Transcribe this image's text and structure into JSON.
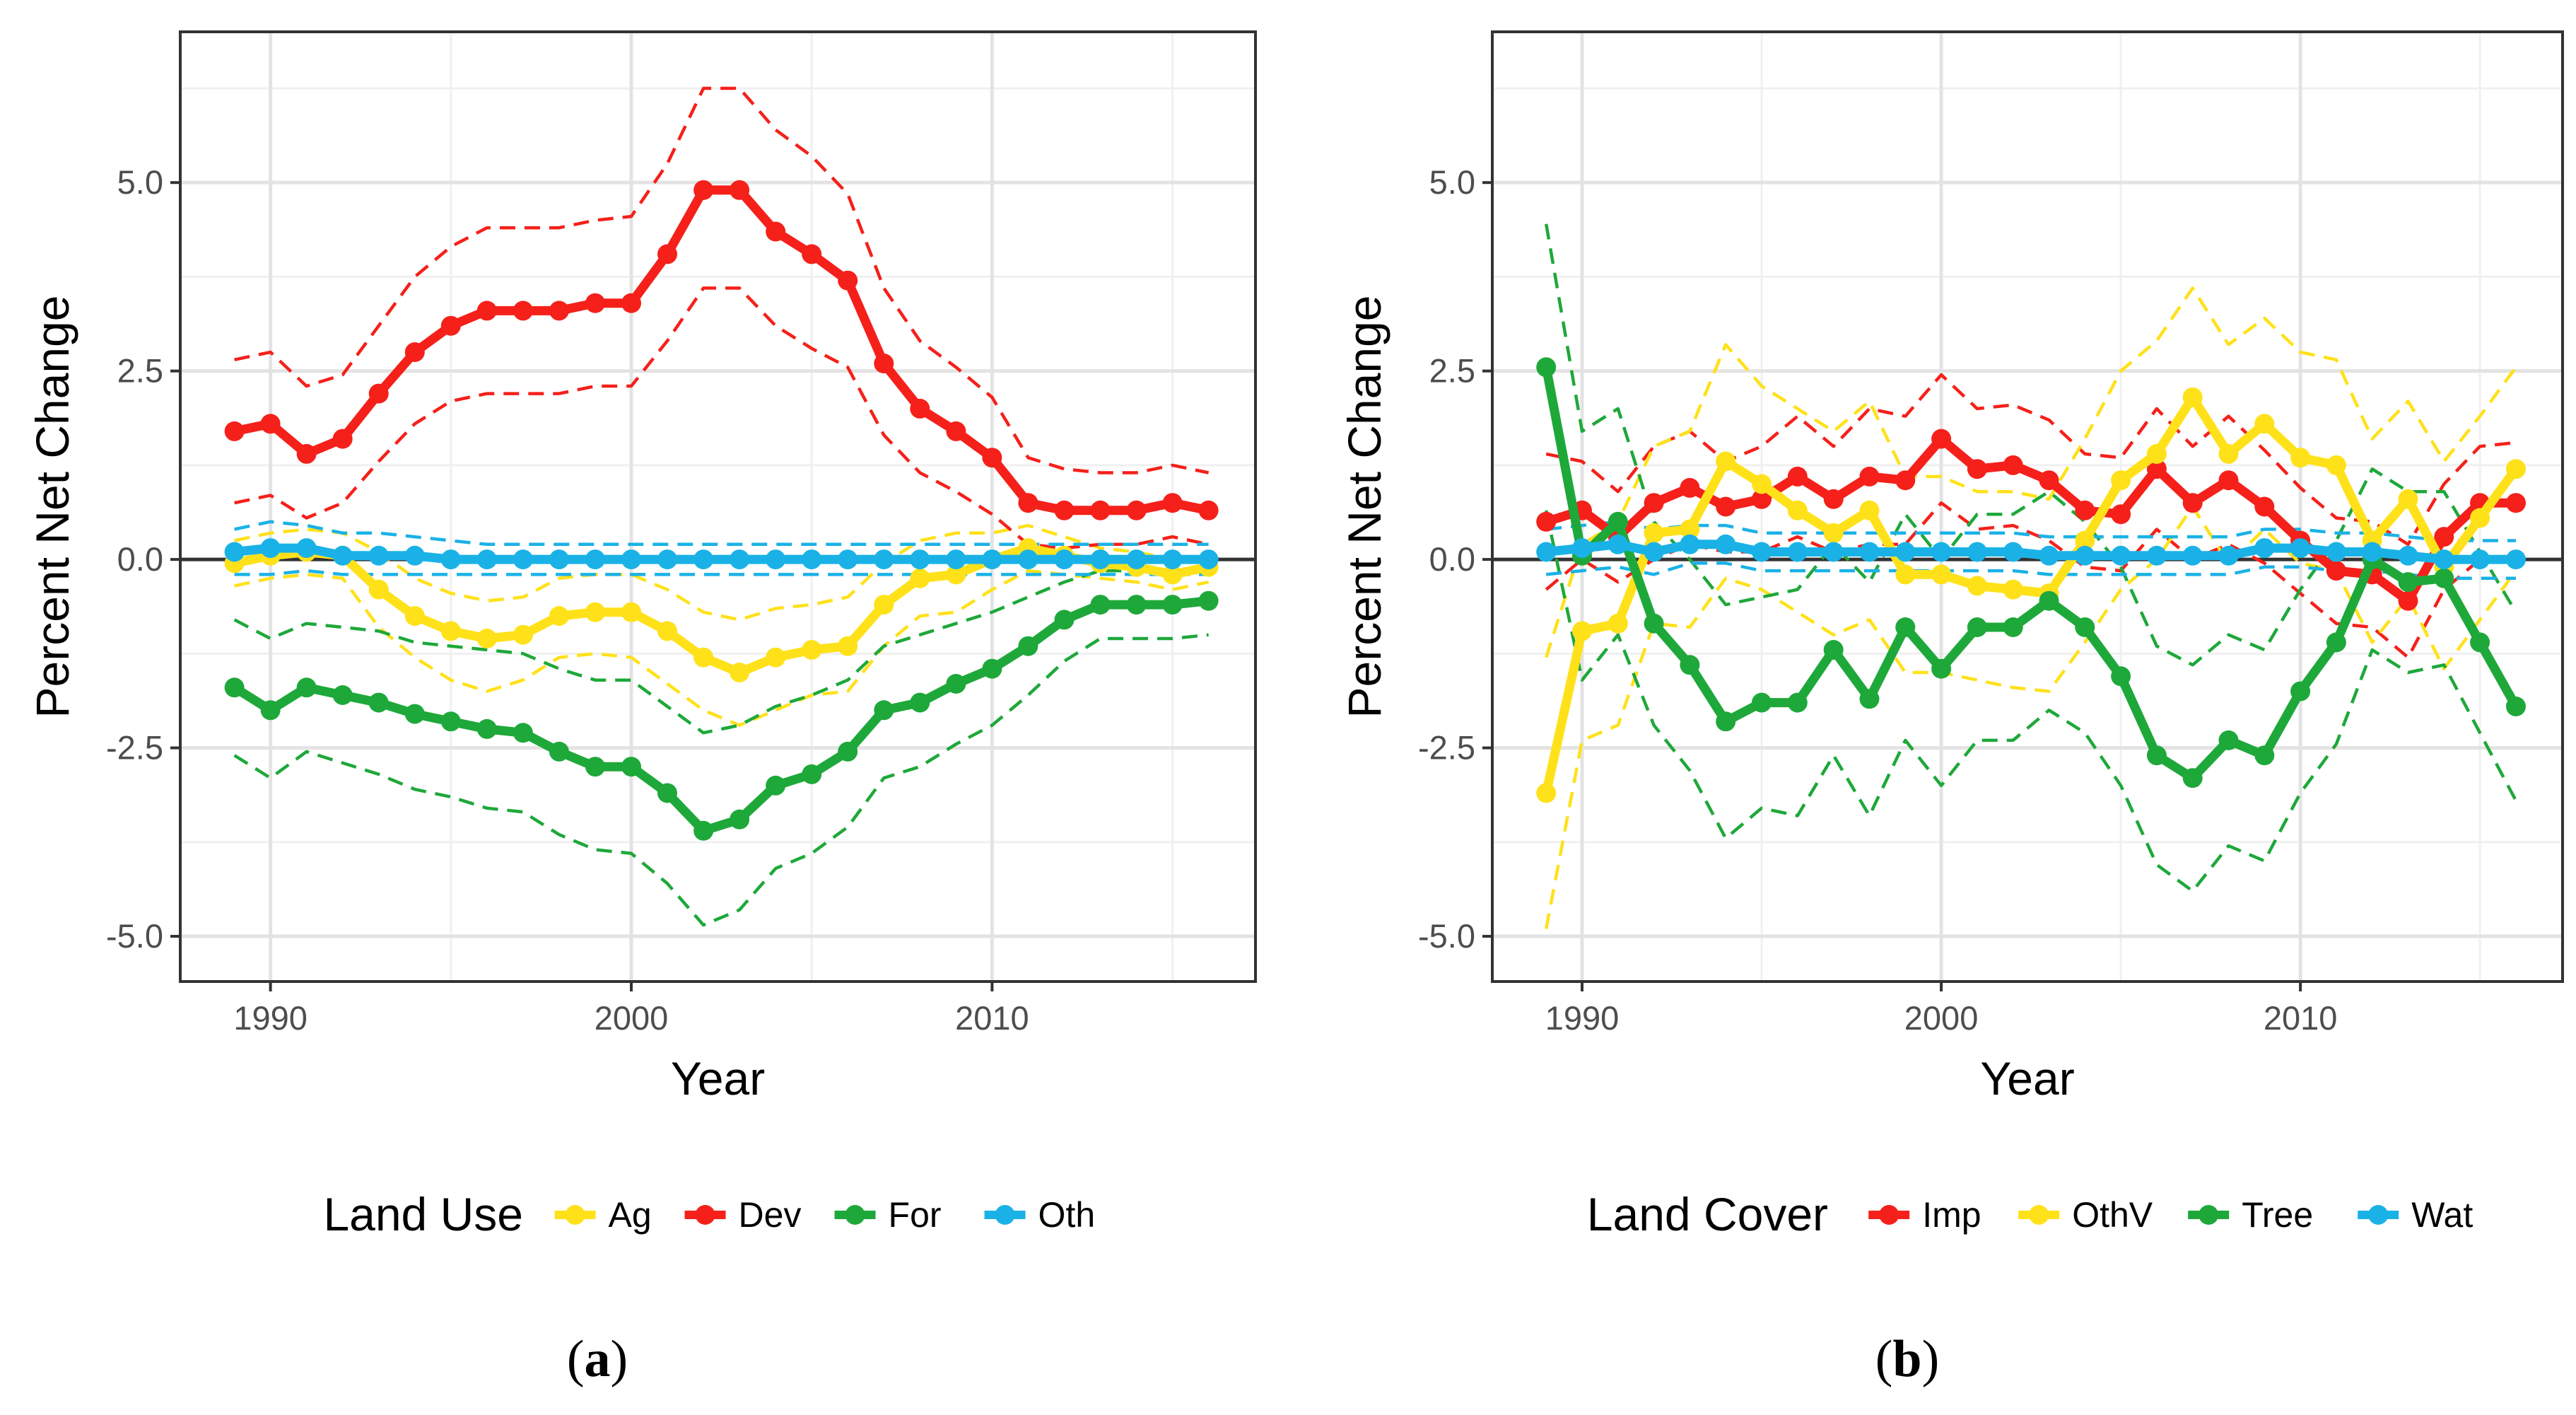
{
  "captions": [
    {
      "open": "(",
      "letter": "a",
      "close": ")"
    },
    {
      "open": "(",
      "letter": "b",
      "close": ")"
    }
  ],
  "chart_data": [
    {
      "type": "line",
      "xlabel": "Year",
      "ylabel": "Percent Net Change",
      "xlim": [
        1987.5,
        2017.3
      ],
      "ylim": [
        -5.6,
        7.0
      ],
      "xticks": [
        1990,
        2000,
        2010
      ],
      "xtick_labels": [
        "1990",
        "2000",
        "2010"
      ],
      "yticks": [
        -5,
        -2.5,
        0,
        2.5,
        5
      ],
      "ytick_labels": [
        "-5.0",
        "-2.5",
        "0.0",
        "2.5",
        "5.0"
      ],
      "grid": true,
      "zero_line": true,
      "legend_title": "Land Use",
      "legend_position": "bottom",
      "x": [
        1989,
        1990,
        1991,
        1992,
        1993,
        1994,
        1995,
        1996,
        1997,
        1998,
        1999,
        2000,
        2001,
        2002,
        2003,
        2004,
        2005,
        2006,
        2007,
        2008,
        2009,
        2010,
        2011,
        2012,
        2013,
        2014,
        2015,
        2016
      ],
      "series": [
        {
          "name": "Ag",
          "color": "#FFE11A",
          "values": [
            -0.05,
            0.05,
            0.1,
            0.05,
            -0.4,
            -0.75,
            -0.95,
            -1.05,
            -1.0,
            -0.75,
            -0.7,
            -0.7,
            -0.95,
            -1.3,
            -1.5,
            -1.3,
            -1.2,
            -1.15,
            -0.6,
            -0.25,
            -0.2,
            0.0,
            0.15,
            0.05,
            -0.05,
            -0.1,
            -0.2,
            -0.1
          ],
          "upper": [
            0.25,
            0.35,
            0.4,
            0.35,
            0.1,
            -0.25,
            -0.45,
            -0.55,
            -0.5,
            -0.25,
            -0.2,
            -0.2,
            -0.4,
            -0.7,
            -0.8,
            -0.65,
            -0.6,
            -0.5,
            -0.05,
            0.25,
            0.35,
            0.35,
            0.45,
            0.3,
            0.15,
            0.1,
            0.0,
            0.05
          ],
          "lower": [
            -0.35,
            -0.25,
            -0.2,
            -0.25,
            -0.9,
            -1.3,
            -1.6,
            -1.75,
            -1.6,
            -1.3,
            -1.25,
            -1.3,
            -1.65,
            -2.0,
            -2.2,
            -2.0,
            -1.8,
            -1.75,
            -1.15,
            -0.75,
            -0.7,
            -0.4,
            -0.15,
            -0.2,
            -0.25,
            -0.3,
            -0.4,
            -0.3
          ]
        },
        {
          "name": "Dev",
          "color": "#F5201A",
          "values": [
            1.7,
            1.8,
            1.4,
            1.6,
            2.2,
            2.75,
            3.1,
            3.3,
            3.3,
            3.3,
            3.4,
            3.4,
            4.05,
            4.9,
            4.9,
            4.35,
            4.05,
            3.7,
            2.6,
            2.0,
            1.7,
            1.35,
            0.75,
            0.65,
            0.65,
            0.65,
            0.75,
            0.65
          ],
          "upper": [
            2.65,
            2.75,
            2.3,
            2.45,
            3.1,
            3.75,
            4.15,
            4.4,
            4.4,
            4.4,
            4.5,
            4.55,
            5.25,
            6.25,
            6.25,
            5.7,
            5.35,
            4.85,
            3.6,
            2.9,
            2.55,
            2.15,
            1.35,
            1.2,
            1.15,
            1.15,
            1.25,
            1.15
          ],
          "lower": [
            0.75,
            0.85,
            0.55,
            0.75,
            1.3,
            1.8,
            2.1,
            2.2,
            2.2,
            2.2,
            2.3,
            2.3,
            2.9,
            3.6,
            3.6,
            3.1,
            2.8,
            2.55,
            1.65,
            1.15,
            0.9,
            0.6,
            0.2,
            0.15,
            0.2,
            0.2,
            0.3,
            0.2
          ]
        },
        {
          "name": "For",
          "color": "#1EA83A",
          "values": [
            -1.7,
            -2.0,
            -1.7,
            -1.8,
            -1.9,
            -2.05,
            -2.15,
            -2.25,
            -2.3,
            -2.55,
            -2.75,
            -2.75,
            -3.1,
            -3.6,
            -3.45,
            -3.0,
            -2.85,
            -2.55,
            -2.0,
            -1.9,
            -1.65,
            -1.45,
            -1.15,
            -0.8,
            -0.6,
            -0.6,
            -0.6,
            -0.55
          ],
          "upper": [
            -0.8,
            -1.05,
            -0.85,
            -0.9,
            -0.95,
            -1.1,
            -1.15,
            -1.2,
            -1.25,
            -1.45,
            -1.6,
            -1.6,
            -1.95,
            -2.3,
            -2.2,
            -1.95,
            -1.8,
            -1.6,
            -1.15,
            -1.0,
            -0.85,
            -0.7,
            -0.5,
            -0.3,
            -0.15,
            -0.15,
            -0.15,
            -0.1
          ],
          "lower": [
            -2.6,
            -2.9,
            -2.55,
            -2.7,
            -2.85,
            -3.05,
            -3.15,
            -3.3,
            -3.35,
            -3.65,
            -3.85,
            -3.9,
            -4.3,
            -4.85,
            -4.65,
            -4.1,
            -3.9,
            -3.55,
            -2.9,
            -2.75,
            -2.45,
            -2.2,
            -1.8,
            -1.35,
            -1.05,
            -1.05,
            -1.05,
            -1.0
          ]
        },
        {
          "name": "Oth",
          "color": "#1AB2E6",
          "values": [
            0.1,
            0.15,
            0.15,
            0.05,
            0.05,
            0.05,
            0.0,
            0.0,
            0.0,
            0.0,
            0.0,
            0.0,
            0.0,
            0.0,
            0.0,
            0.0,
            0.0,
            0.0,
            0.0,
            0.0,
            0.0,
            0.0,
            0.0,
            0.0,
            0.0,
            0.0,
            0.0,
            0.0
          ],
          "upper": [
            0.4,
            0.5,
            0.45,
            0.35,
            0.35,
            0.3,
            0.25,
            0.2,
            0.2,
            0.2,
            0.2,
            0.2,
            0.2,
            0.2,
            0.2,
            0.2,
            0.2,
            0.2,
            0.2,
            0.2,
            0.2,
            0.2,
            0.2,
            0.2,
            0.2,
            0.2,
            0.2,
            0.2
          ],
          "lower": [
            -0.2,
            -0.2,
            -0.15,
            -0.2,
            -0.2,
            -0.2,
            -0.2,
            -0.2,
            -0.2,
            -0.2,
            -0.2,
            -0.2,
            -0.2,
            -0.2,
            -0.2,
            -0.2,
            -0.2,
            -0.2,
            -0.2,
            -0.2,
            -0.2,
            -0.2,
            -0.2,
            -0.2,
            -0.2,
            -0.2,
            -0.2,
            -0.2
          ]
        }
      ]
    },
    {
      "type": "line",
      "xlabel": "Year",
      "ylabel": "Percent Net Change",
      "xlim": [
        1987.5,
        2017.3
      ],
      "ylim": [
        -5.6,
        7.0
      ],
      "xticks": [
        1990,
        2000,
        2010
      ],
      "xtick_labels": [
        "1990",
        "2000",
        "2010"
      ],
      "yticks": [
        -5,
        -2.5,
        0,
        2.5,
        5
      ],
      "ytick_labels": [
        "-5.0",
        "-2.5",
        "0.0",
        "2.5",
        "5.0"
      ],
      "grid": true,
      "zero_line": true,
      "legend_title": "Land Cover",
      "legend_position": "bottom",
      "x": [
        1989,
        1990,
        1991,
        1992,
        1993,
        1994,
        1995,
        1996,
        1997,
        1998,
        1999,
        2000,
        2001,
        2002,
        2003,
        2004,
        2005,
        2006,
        2007,
        2008,
        2009,
        2010,
        2011,
        2012,
        2013,
        2014,
        2015,
        2016
      ],
      "series": [
        {
          "name": "Imp",
          "color": "#F5201A",
          "values": [
            0.5,
            0.65,
            0.3,
            0.75,
            0.95,
            0.7,
            0.8,
            1.1,
            0.8,
            1.1,
            1.05,
            1.6,
            1.2,
            1.25,
            1.05,
            0.65,
            0.6,
            1.2,
            0.75,
            1.05,
            0.7,
            0.25,
            -0.15,
            -0.2,
            -0.55,
            0.3,
            0.75,
            0.75
          ],
          "upper": [
            1.4,
            1.3,
            0.9,
            1.5,
            1.7,
            1.3,
            1.5,
            1.9,
            1.5,
            2.0,
            1.9,
            2.45,
            2.0,
            2.05,
            1.85,
            1.4,
            1.35,
            2.0,
            1.5,
            1.9,
            1.45,
            0.95,
            0.55,
            0.5,
            0.2,
            1.0,
            1.5,
            1.55
          ],
          "lower": [
            -0.4,
            0.0,
            -0.3,
            0.0,
            0.2,
            0.1,
            0.1,
            0.3,
            0.1,
            0.2,
            0.2,
            0.75,
            0.4,
            0.45,
            0.25,
            -0.1,
            -0.15,
            0.4,
            0.0,
            0.2,
            -0.05,
            -0.45,
            -0.85,
            -0.9,
            -1.3,
            -0.4,
            0.0,
            -0.05
          ]
        },
        {
          "name": "OthV",
          "color": "#FFE11A",
          "values": [
            -3.1,
            -0.95,
            -0.85,
            0.35,
            0.4,
            1.3,
            1.0,
            0.65,
            0.35,
            0.65,
            -0.2,
            -0.2,
            -0.35,
            -0.4,
            -0.45,
            0.25,
            1.05,
            1.4,
            2.15,
            1.4,
            1.8,
            1.35,
            1.25,
            0.25,
            0.8,
            -0.1,
            0.55,
            1.2
          ],
          "upper": [
            -1.3,
            0.2,
            0.5,
            1.5,
            1.7,
            2.85,
            2.3,
            2.0,
            1.7,
            2.1,
            1.1,
            1.1,
            0.9,
            0.9,
            0.8,
            1.6,
            2.5,
            2.9,
            3.6,
            2.85,
            3.2,
            2.75,
            2.65,
            1.6,
            2.1,
            1.3,
            1.9,
            2.55
          ],
          "lower": [
            -4.9,
            -2.4,
            -2.2,
            -0.85,
            -0.9,
            -0.25,
            -0.4,
            -0.7,
            -1.0,
            -0.8,
            -1.5,
            -1.5,
            -1.6,
            -1.7,
            -1.75,
            -1.1,
            -0.4,
            0.0,
            0.7,
            -0.05,
            0.4,
            -0.05,
            -0.15,
            -1.1,
            -0.5,
            -1.45,
            -0.8,
            -0.15
          ]
        },
        {
          "name": "Tree",
          "color": "#1EA83A",
          "values": [
            2.55,
            0.05,
            0.5,
            -0.85,
            -1.4,
            -2.15,
            -1.9,
            -1.9,
            -1.2,
            -1.85,
            -0.9,
            -1.45,
            -0.9,
            -0.9,
            -0.55,
            -0.9,
            -1.55,
            -2.6,
            -2.9,
            -2.4,
            -2.6,
            -1.75,
            -1.1,
            0.0,
            -0.3,
            -0.25,
            -1.1,
            -1.95
          ],
          "upper": [
            4.45,
            1.7,
            2.0,
            0.5,
            0.0,
            -0.6,
            -0.5,
            -0.4,
            0.2,
            -0.3,
            0.6,
            0.0,
            0.6,
            0.6,
            0.9,
            0.5,
            -0.1,
            -1.15,
            -1.4,
            -1.0,
            -1.2,
            -0.4,
            0.25,
            1.2,
            0.9,
            0.9,
            0.1,
            -0.7
          ],
          "lower": [
            0.65,
            -1.6,
            -1.0,
            -2.2,
            -2.8,
            -3.7,
            -3.3,
            -3.4,
            -2.6,
            -3.4,
            -2.4,
            -3.0,
            -2.4,
            -2.4,
            -2.0,
            -2.3,
            -3.0,
            -4.05,
            -4.4,
            -3.8,
            -4.0,
            -3.1,
            -2.45,
            -1.2,
            -1.5,
            -1.4,
            -2.3,
            -3.2
          ]
        },
        {
          "name": "Wat",
          "color": "#1AB2E6",
          "values": [
            0.1,
            0.15,
            0.2,
            0.1,
            0.2,
            0.2,
            0.1,
            0.1,
            0.1,
            0.1,
            0.1,
            0.1,
            0.1,
            0.1,
            0.05,
            0.05,
            0.05,
            0.05,
            0.05,
            0.05,
            0.15,
            0.15,
            0.1,
            0.1,
            0.05,
            0.0,
            0.0,
            0.0
          ],
          "upper": [
            0.4,
            0.45,
            0.5,
            0.4,
            0.45,
            0.45,
            0.35,
            0.35,
            0.35,
            0.35,
            0.35,
            0.35,
            0.35,
            0.35,
            0.3,
            0.3,
            0.3,
            0.3,
            0.3,
            0.3,
            0.4,
            0.4,
            0.35,
            0.35,
            0.3,
            0.25,
            0.25,
            0.25
          ],
          "lower": [
            -0.2,
            -0.15,
            -0.1,
            -0.2,
            -0.05,
            -0.05,
            -0.15,
            -0.15,
            -0.15,
            -0.15,
            -0.15,
            -0.15,
            -0.15,
            -0.15,
            -0.2,
            -0.2,
            -0.2,
            -0.2,
            -0.2,
            -0.2,
            -0.1,
            -0.1,
            -0.15,
            -0.15,
            -0.2,
            -0.25,
            -0.25,
            -0.25
          ]
        }
      ]
    }
  ]
}
